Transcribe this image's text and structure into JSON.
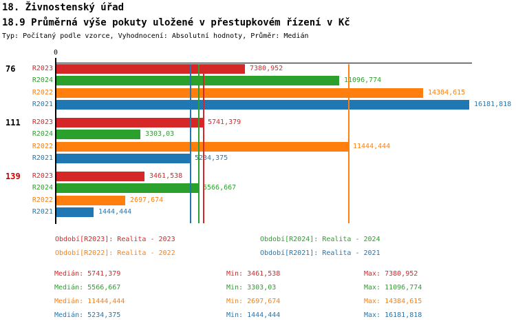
{
  "header": {
    "title": "18. Živnostenský úřad",
    "subtitle": "18.9 Průměrná výše pokuty uložené v přestupkovém řízení v Kč",
    "meta": "Typ: Počítaný podle vzorce, Vyhodnocení: Absolutní hodnoty, Průměr: Medián"
  },
  "chart_data": {
    "type": "bar",
    "orientation": "horizontal",
    "title": "",
    "xlabel": "",
    "ylabel": "",
    "xlim": [
      0,
      16181.818
    ],
    "origin_label": "0",
    "grid": false,
    "series": [
      {
        "id": "R2023",
        "label": "R2023",
        "color": "#d62728",
        "median": 5741.379
      },
      {
        "id": "R2024",
        "label": "R2024",
        "color": "#2ca02c",
        "median": 5566.667
      },
      {
        "id": "R2022",
        "label": "R2022",
        "color": "#ff7f0e",
        "median": 11444.444
      },
      {
        "id": "R2021",
        "label": "R2021",
        "color": "#1f77b4",
        "median": 5234.375
      }
    ],
    "groups": [
      {
        "label": "76",
        "label_color": "#000000",
        "values": [
          7380.952,
          11096.774,
          14384.615,
          16181.818
        ],
        "display": [
          "7380,952",
          "11096,774",
          "14384,615",
          "16181,818"
        ]
      },
      {
        "label": "111",
        "label_color": "#000000",
        "values": [
          5741.379,
          3303.03,
          11444.444,
          5234.375
        ],
        "display": [
          "5741,379",
          "3303,03",
          "11444,444",
          "5234,375"
        ]
      },
      {
        "label": "139",
        "label_color": "#cc0000",
        "values": [
          3461.538,
          5566.667,
          2697.674,
          1444.444
        ],
        "display": [
          "3461,538",
          "5566,667",
          "2697,674",
          "1444,444"
        ]
      }
    ]
  },
  "legend": {
    "items": [
      {
        "id": "R2023",
        "text": "Období[R2023]: Realita - 2023",
        "color": "#d62728"
      },
      {
        "id": "R2024",
        "text": "Období[R2024]: Realita - 2024",
        "color": "#2ca02c"
      },
      {
        "id": "R2022",
        "text": "Období[R2022]: Realita - 2022",
        "color": "#ff7f0e"
      },
      {
        "id": "R2021",
        "text": "Období[R2021]: Realita - 2021",
        "color": "#1f77b4"
      }
    ]
  },
  "stats": {
    "rows": [
      {
        "id": "R2023",
        "color": "#d62728",
        "median": "Medián: 5741,379",
        "min": "Min: 3461,538",
        "max": "Max: 7380,952"
      },
      {
        "id": "R2024",
        "color": "#2ca02c",
        "median": "Medián: 5566,667",
        "min": "Min: 3303,03",
        "max": "Max: 11096,774"
      },
      {
        "id": "R2022",
        "color": "#ff7f0e",
        "median": "Medián: 11444,444",
        "min": "Min: 2697,674",
        "max": "Max: 14384,615"
      },
      {
        "id": "R2021",
        "color": "#1f77b4",
        "median": "Medián: 5234,375",
        "min": "Min: 1444,444",
        "max": "Max: 16181,818"
      }
    ]
  }
}
